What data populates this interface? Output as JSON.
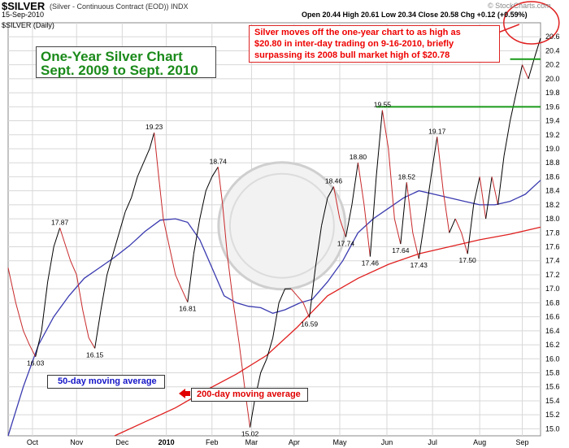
{
  "header": {
    "symbol": "$SILVER",
    "symbol_desc": "(Silver - Continuous Contract (EOD))  INDX",
    "date": "15-Sep-2010",
    "period": "$SILVER (Daily)",
    "ohlc": "Open 20.44  High 20.61  Low 20.34  Close 20.58  Chg +0.12 (+0.59%)",
    "site": "© StockCharts.com"
  },
  "title": {
    "line1": "One-Year Silver Chart",
    "line2": "Sept. 2009 to Sept. 2010"
  },
  "annotation": {
    "line1": "Silver moves off the one-year chart to as high as",
    "line2": "$20.80 in inter-day trading on 9-16-2010, briefly",
    "line3": "surpassing its 2008 bull market high of $20.78"
  },
  "ma50_label": "50-day moving average",
  "ma200_label": "200-day moving average",
  "colors": {
    "green_text": "#1a8a1a",
    "red_text": "#e00000",
    "blue_text": "#1515c8",
    "up_line": "#000000",
    "down_line": "#c8282a",
    "ma50": "#3a3ab0",
    "ma200": "#e02020",
    "grid": "#d8d8d8",
    "resistance": "#1a9a1a"
  },
  "chart_data": {
    "type": "line",
    "title": "One-Year Silver Chart",
    "subtitle": "Sept. 2009 to Sept. 2010",
    "ylim": [
      14.9,
      20.8
    ],
    "y_ticks": [
      "15.0",
      "15.2",
      "15.4",
      "15.6",
      "15.8",
      "16.0",
      "16.2",
      "16.4",
      "16.6",
      "16.8",
      "17.0",
      "17.2",
      "17.4",
      "17.6",
      "17.8",
      "18.0",
      "18.2",
      "18.4",
      "18.6",
      "18.8",
      "19.0",
      "19.2",
      "19.4",
      "19.6",
      "19.8",
      "20.0",
      "20.2",
      "20.4",
      "20.6"
    ],
    "x_ticks": [
      "Oct",
      "Nov",
      "Dec",
      "2010",
      "Feb",
      "Mar",
      "Apr",
      "May",
      "Jun",
      "Jul",
      "Aug",
      "Sep"
    ],
    "resistance_levels": [
      19.6,
      20.28
    ],
    "price_points": [
      [
        0,
        17.3
      ],
      [
        5,
        16.8
      ],
      [
        10,
        16.4
      ],
      [
        14,
        16.2
      ],
      [
        18,
        16.03
      ],
      [
        22,
        16.4
      ],
      [
        26,
        17.1
      ],
      [
        30,
        17.6
      ],
      [
        34,
        17.87
      ],
      [
        38,
        17.6
      ],
      [
        41,
        17.4
      ],
      [
        45,
        17.2
      ],
      [
        49,
        16.7
      ],
      [
        53,
        16.3
      ],
      [
        57,
        16.15
      ],
      [
        61,
        16.7
      ],
      [
        65,
        17.2
      ],
      [
        69,
        17.5
      ],
      [
        73,
        17.8
      ],
      [
        77,
        18.1
      ],
      [
        81,
        18.3
      ],
      [
        85,
        18.6
      ],
      [
        89,
        18.8
      ],
      [
        93,
        19.0
      ],
      [
        96,
        19.23
      ],
      [
        99,
        18.6
      ],
      [
        102,
        18.0
      ],
      [
        106,
        17.6
      ],
      [
        110,
        17.2
      ],
      [
        114,
        17.0
      ],
      [
        118,
        16.81
      ],
      [
        122,
        17.5
      ],
      [
        126,
        18.0
      ],
      [
        130,
        18.4
      ],
      [
        134,
        18.6
      ],
      [
        138,
        18.74
      ],
      [
        141,
        18.2
      ],
      [
        144,
        17.5
      ],
      [
        148,
        16.8
      ],
      [
        152,
        16.2
      ],
      [
        156,
        15.5
      ],
      [
        159,
        15.02
      ],
      [
        162,
        15.4
      ],
      [
        166,
        15.8
      ],
      [
        170,
        16.0
      ],
      [
        174,
        16.3
      ],
      [
        178,
        16.8
      ],
      [
        182,
        17.0
      ],
      [
        186,
        17.0
      ],
      [
        190,
        16.9
      ],
      [
        194,
        16.8
      ],
      [
        198,
        16.59
      ],
      [
        202,
        17.3
      ],
      [
        206,
        17.9
      ],
      [
        210,
        18.3
      ],
      [
        214,
        18.46
      ],
      [
        218,
        18.0
      ],
      [
        222,
        17.74
      ],
      [
        226,
        18.2
      ],
      [
        230,
        18.8
      ],
      [
        234,
        18.2
      ],
      [
        238,
        17.46
      ],
      [
        242,
        18.6
      ],
      [
        246,
        19.55
      ],
      [
        250,
        19.0
      ],
      [
        254,
        18.0
      ],
      [
        258,
        17.64
      ],
      [
        262,
        18.52
      ],
      [
        266,
        17.8
      ],
      [
        270,
        17.43
      ],
      [
        274,
        18.0
      ],
      [
        278,
        18.6
      ],
      [
        282,
        19.17
      ],
      [
        286,
        18.4
      ],
      [
        290,
        17.8
      ],
      [
        294,
        18.0
      ],
      [
        298,
        17.8
      ],
      [
        302,
        17.5
      ],
      [
        306,
        18.2
      ],
      [
        310,
        18.6
      ],
      [
        314,
        18.0
      ],
      [
        318,
        18.6
      ],
      [
        322,
        18.2
      ],
      [
        326,
        18.9
      ],
      [
        330,
        19.4
      ],
      [
        334,
        19.8
      ],
      [
        338,
        20.2
      ],
      [
        342,
        20.0
      ],
      [
        346,
        20.3
      ],
      [
        350,
        20.58
      ]
    ],
    "ma50_points": [
      [
        0,
        14.9
      ],
      [
        10,
        15.6
      ],
      [
        20,
        16.2
      ],
      [
        30,
        16.6
      ],
      [
        40,
        16.9
      ],
      [
        50,
        17.15
      ],
      [
        60,
        17.3
      ],
      [
        70,
        17.45
      ],
      [
        80,
        17.62
      ],
      [
        90,
        17.82
      ],
      [
        100,
        17.98
      ],
      [
        110,
        18.0
      ],
      [
        118,
        17.95
      ],
      [
        126,
        17.7
      ],
      [
        134,
        17.3
      ],
      [
        142,
        16.9
      ],
      [
        150,
        16.8
      ],
      [
        158,
        16.75
      ],
      [
        166,
        16.73
      ],
      [
        174,
        16.65
      ],
      [
        182,
        16.7
      ],
      [
        192,
        16.8
      ],
      [
        200,
        16.85
      ],
      [
        210,
        17.1
      ],
      [
        220,
        17.4
      ],
      [
        230,
        17.8
      ],
      [
        240,
        18.0
      ],
      [
        250,
        18.15
      ],
      [
        260,
        18.3
      ],
      [
        270,
        18.4
      ],
      [
        280,
        18.35
      ],
      [
        290,
        18.3
      ],
      [
        300,
        18.25
      ],
      [
        310,
        18.2
      ],
      [
        320,
        18.2
      ],
      [
        330,
        18.25
      ],
      [
        340,
        18.35
      ],
      [
        350,
        18.55
      ]
    ],
    "ma200_points": [
      [
        70,
        14.9
      ],
      [
        90,
        15.1
      ],
      [
        110,
        15.3
      ],
      [
        130,
        15.55
      ],
      [
        150,
        15.78
      ],
      [
        170,
        16.05
      ],
      [
        190,
        16.45
      ],
      [
        210,
        16.9
      ],
      [
        230,
        17.15
      ],
      [
        250,
        17.35
      ],
      [
        270,
        17.5
      ],
      [
        290,
        17.6
      ],
      [
        310,
        17.7
      ],
      [
        330,
        17.78
      ],
      [
        350,
        17.88
      ]
    ],
    "labels": [
      {
        "text": "16.03",
        "x": 18,
        "y": 16.03,
        "pos": "below"
      },
      {
        "text": "17.87",
        "x": 34,
        "y": 17.87,
        "pos": "above"
      },
      {
        "text": "16.15",
        "x": 57,
        "y": 16.15,
        "pos": "below"
      },
      {
        "text": "19.23",
        "x": 96,
        "y": 19.23,
        "pos": "above"
      },
      {
        "text": "16.81",
        "x": 118,
        "y": 16.81,
        "pos": "below"
      },
      {
        "text": "18.74",
        "x": 138,
        "y": 18.74,
        "pos": "above"
      },
      {
        "text": "15.02",
        "x": 159,
        "y": 15.02,
        "pos": "below"
      },
      {
        "text": "16.59",
        "x": 198,
        "y": 16.59,
        "pos": "below"
      },
      {
        "text": "18.46",
        "x": 214,
        "y": 18.46,
        "pos": "above"
      },
      {
        "text": "17.74",
        "x": 222,
        "y": 17.74,
        "pos": "below"
      },
      {
        "text": "18.80",
        "x": 230,
        "y": 18.8,
        "pos": "above"
      },
      {
        "text": "17.46",
        "x": 238,
        "y": 17.46,
        "pos": "below"
      },
      {
        "text": "19.55",
        "x": 246,
        "y": 19.55,
        "pos": "above"
      },
      {
        "text": "17.64",
        "x": 258,
        "y": 17.64,
        "pos": "below"
      },
      {
        "text": "18.52",
        "x": 262,
        "y": 18.52,
        "pos": "above"
      },
      {
        "text": "17.43",
        "x": 270,
        "y": 17.43,
        "pos": "below"
      },
      {
        "text": "19.17",
        "x": 282,
        "y": 19.17,
        "pos": "above"
      },
      {
        "text": "17.50",
        "x": 302,
        "y": 17.5,
        "pos": "below"
      }
    ]
  }
}
